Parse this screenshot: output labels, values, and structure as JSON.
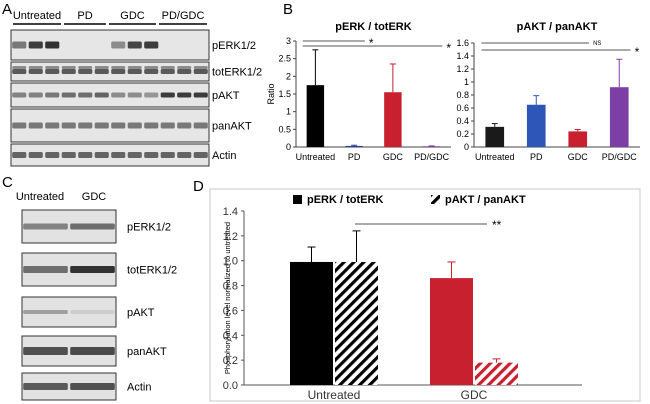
{
  "panels": {
    "A": {
      "letter": "A",
      "groups": [
        "Untreated",
        "PD",
        "GDC",
        "PD/GDC"
      ],
      "blots": [
        "pERK1/2",
        "totERK1/2",
        "pAKT",
        "panAKT",
        "Actin"
      ]
    },
    "B": {
      "letter": "B"
    },
    "C": {
      "letter": "C",
      "lanes": [
        "Untreated",
        "GDC"
      ],
      "blots": [
        "pERK1/2",
        "totERK1/2",
        "pAKT",
        "panAKT",
        "Actin"
      ]
    },
    "D": {
      "letter": "D"
    }
  },
  "chart_data": [
    {
      "id": "B-left",
      "type": "bar",
      "title": "pERK / totERK",
      "ylabel": "Ratio",
      "categories": [
        "Untreated",
        "PD",
        "GDC",
        "PD/GDC"
      ],
      "values": [
        1.75,
        0.03,
        1.55,
        0.02
      ],
      "errors": [
        1.0,
        0.02,
        0.8,
        0.01
      ],
      "colors": [
        "#000000",
        "#2b3d9a",
        "#c8202f",
        "#6a3d9a"
      ],
      "ylim": [
        0,
        3.0
      ],
      "yticks": [
        "0",
        "0.5",
        "1",
        "1.5",
        "2",
        "2.5",
        "3"
      ],
      "significance": [
        {
          "from": "Untreated",
          "to": "PD",
          "label": "*"
        },
        {
          "from": "Untreated",
          "to": "PD/GDC",
          "label": "*"
        }
      ]
    },
    {
      "id": "B-right",
      "type": "bar",
      "title": "pAKT / panAKT",
      "categories": [
        "Untreated",
        "PD",
        "GDC",
        "PD/GDC"
      ],
      "values": [
        0.31,
        0.65,
        0.24,
        0.92
      ],
      "errors": [
        0.05,
        0.14,
        0.03,
        0.43
      ],
      "colors": [
        "#1a1a1a",
        "#2e55b8",
        "#c8202f",
        "#7b3fa6"
      ],
      "ylim": [
        0,
        1.6
      ],
      "yticks": [
        "0",
        "0.2",
        "0.4",
        "0.6",
        "0.8",
        "1",
        "1.2",
        "1.4",
        "1.6"
      ],
      "significance": [
        {
          "from": "Untreated",
          "to": "GDC",
          "label": "NS"
        },
        {
          "from": "Untreated",
          "to": "PD/GDC",
          "label": "*"
        }
      ]
    },
    {
      "id": "D",
      "type": "bar",
      "ylabel": "Phosphorylation level normalized to untreated",
      "categories": [
        "Untreated",
        "GDC"
      ],
      "series": [
        {
          "name": "pERK / totERK",
          "values": [
            0.99,
            0.86
          ],
          "errors": [
            0.12,
            0.13
          ]
        },
        {
          "name": "pAKT / panAKT",
          "values": [
            0.99,
            0.18
          ],
          "errors": [
            0.25,
            0.03
          ]
        }
      ],
      "colors": [
        "#000000",
        "#c8202f"
      ],
      "ylim": [
        0,
        1.4
      ],
      "yticks": [
        "0.0",
        "0.2",
        "0.4",
        "0.6",
        "0.8",
        "1.0",
        "1.2",
        "1.4"
      ],
      "significance": [
        {
          "from": "Untreated",
          "to": "GDC",
          "label": "**"
        }
      ]
    }
  ]
}
